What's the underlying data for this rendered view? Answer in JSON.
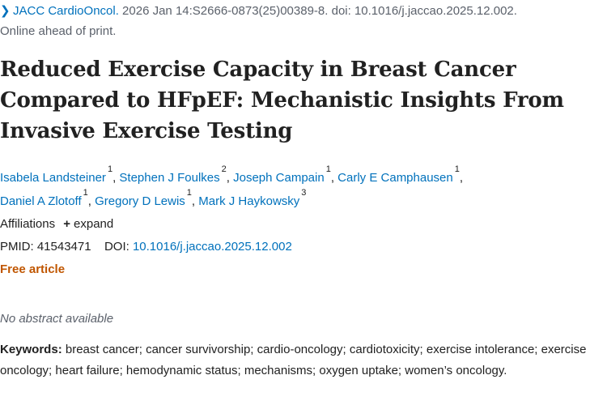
{
  "citation": {
    "chevron": "❯",
    "journal": "JACC CardioOncol.",
    "details": " 2026 Jan 14:S2666-0873(25)00389-8. doi: 10.1016/j.jaccao.2025.12.002.",
    "status": "Online ahead of print."
  },
  "title": "Reduced Exercise Capacity in Breast Cancer Compared to HFpEF: Mechanistic Insights From Invasive Exercise Testing",
  "authors": [
    {
      "name": "Isabela Landsteiner",
      "aff": "1"
    },
    {
      "name": "Stephen J Foulkes",
      "aff": "2"
    },
    {
      "name": "Joseph Campain",
      "aff": "1"
    },
    {
      "name": "Carly E Camphausen",
      "aff": "1"
    },
    {
      "name": "Daniel A Zlotoff",
      "aff": "1"
    },
    {
      "name": "Gregory D Lewis",
      "aff": "1"
    },
    {
      "name": "Mark J Haykowsky",
      "aff": "3"
    }
  ],
  "affiliations": {
    "label": "Affiliations",
    "expand_icon": "+",
    "expand_label": "expand"
  },
  "identifiers": {
    "pmid_label": "PMID:",
    "pmid": "41543471",
    "doi_label": "DOI:",
    "doi": "10.1016/j.jaccao.2025.12.002"
  },
  "free_article": "Free article",
  "abstract_status": "No abstract available",
  "keywords": {
    "label": "Keywords:",
    "text": " breast cancer; cancer survivorship; cardio-oncology; cardiotoxicity; exercise intolerance; exercise oncology; heart failure; hemodynamic status; mechanisms; oxygen uptake; women’s oncology."
  },
  "colors": {
    "link": "#0071bc",
    "text": "#212121",
    "muted": "#5b616b",
    "free_article": "#c05600"
  }
}
